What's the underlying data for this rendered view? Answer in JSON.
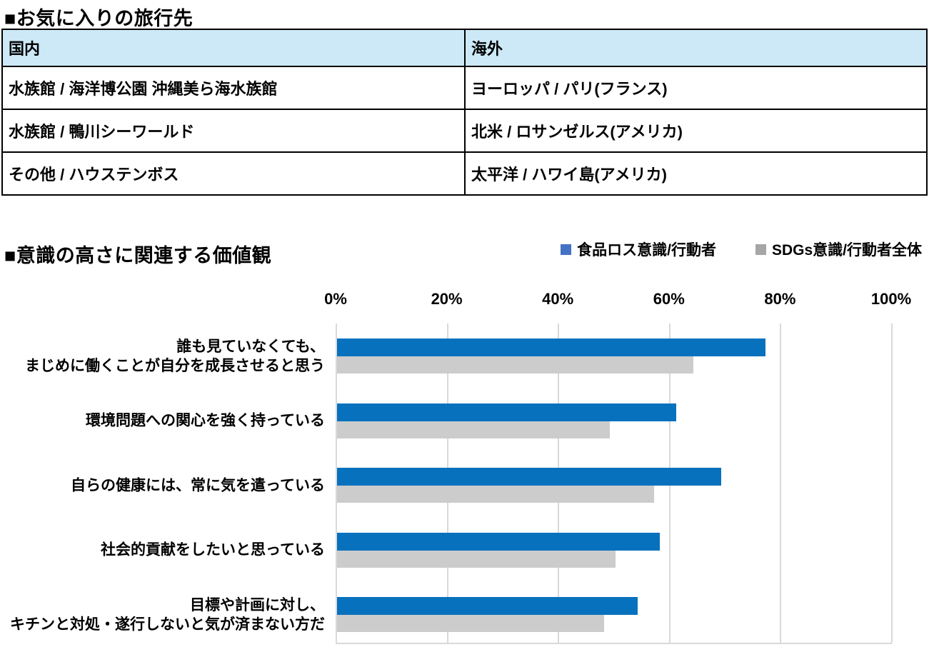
{
  "table_section": {
    "title": "■お気に入りの旅行先",
    "columns": [
      "国内",
      "海外"
    ],
    "rows": [
      [
        "水族館 / 海洋博公園 沖縄美ら海水族館",
        "ヨーロッパ / パリ(フランス)"
      ],
      [
        "水族館 / 鴨川シーワールド",
        "北米 / ロサンゼルス(アメリカ)"
      ],
      [
        "その他 / ハウステンボス",
        "太平洋 / ハワイ島(アメリカ)"
      ]
    ],
    "header_bg": "#CDE9F7",
    "border_color": "#000000"
  },
  "chart_section": {
    "title": "■意識の高さに関連する価値観"
  },
  "chart_data": {
    "type": "bar",
    "orientation": "horizontal",
    "title": "■意識の高さに関連する価値観",
    "categories": [
      "誰も見ていなくても、\nまじめに働くことが自分を成長させると思う",
      "環境問題への関心を強く持っている",
      "自らの健康には、常に気を遣っている",
      "社会的貢献をしたいと思っている",
      "目標や計画に対し、\nキチンと対処・遂行しないと気が済まない方だ"
    ],
    "series": [
      {
        "name": "食品ロス意識/行動者",
        "color": "#0771BE",
        "legend_color": "#4472C4",
        "values": [
          77,
          61,
          69,
          58,
          54
        ]
      },
      {
        "name": "SDGs意識/行動者全体",
        "color": "#CCCCCC",
        "legend_color": "#A6A6A6",
        "values": [
          64,
          49,
          57,
          50,
          48
        ]
      }
    ],
    "x_ticks": [
      "0%",
      "20%",
      "40%",
      "60%",
      "80%",
      "100%"
    ],
    "xlim": [
      0,
      100
    ],
    "grid": true,
    "gridline_color": "#D9D9D9",
    "legend_position": "top-right"
  }
}
